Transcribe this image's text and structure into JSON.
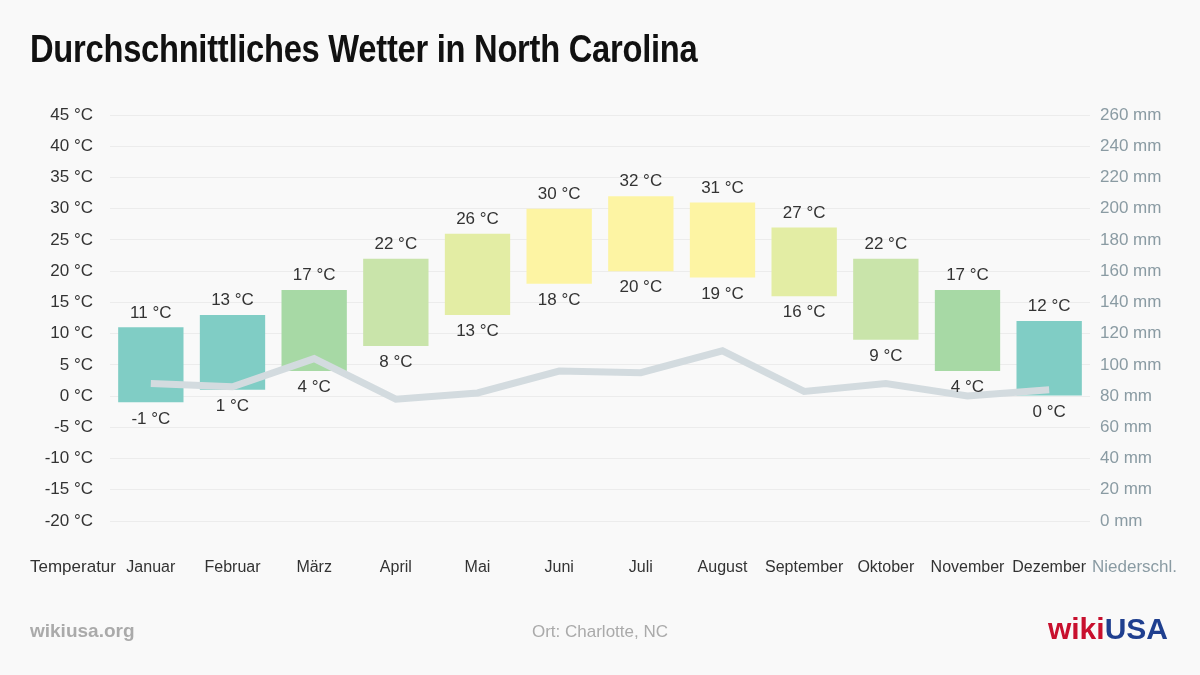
{
  "chart_data": {
    "type": "bar",
    "title": "Durchschnittliches Wetter in North Carolina",
    "categories": [
      "Januar",
      "Februar",
      "März",
      "April",
      "Mai",
      "Juni",
      "Juli",
      "August",
      "September",
      "Oktober",
      "November",
      "Dezember"
    ],
    "ylabel": "Temperatur",
    "y2label": "Niederschl.",
    "series": [
      {
        "type": "bar",
        "values": [
          [
            -1,
            11
          ],
          [
            1,
            13
          ],
          [
            4,
            17
          ],
          [
            8,
            22
          ],
          [
            13,
            26
          ],
          [
            18,
            30
          ],
          [
            20,
            32
          ],
          [
            19,
            31
          ],
          [
            16,
            27
          ],
          [
            9,
            22
          ],
          [
            4,
            17
          ],
          [
            0,
            12
          ]
        ],
        "value_labels": [
          [
            "-1 °C",
            "11 °C"
          ],
          [
            "1 °C",
            "13 °C"
          ],
          [
            "4 °C",
            "17 °C"
          ],
          [
            "8 °C",
            "22 °C"
          ],
          [
            "13 °C",
            "26 °C"
          ],
          [
            "18 °C",
            "30 °C"
          ],
          [
            "20 °C",
            "32 °C"
          ],
          [
            "19 °C",
            "31 °C"
          ],
          [
            "16 °C",
            "27 °C"
          ],
          [
            "9 °C",
            "22 °C"
          ],
          [
            "4 °C",
            "17 °C"
          ],
          [
            "0 °C",
            "12 °C"
          ]
        ],
        "colors": [
          "#80cdc5",
          "#80cdc5",
          "#a7d9a5",
          "#c9e4aa",
          "#e3eda4",
          "#fdf4a3",
          "#fdf4a3",
          "#fdf4a3",
          "#e3eda4",
          "#c9e4aa",
          "#a7d9a5",
          "#80cdc5"
        ]
      },
      {
        "type": "line",
        "axis": "y2",
        "color": "#d3dbdf",
        "values": [
          88,
          86,
          104,
          78,
          82,
          96,
          95,
          109,
          83,
          88,
          80,
          84
        ]
      }
    ],
    "ylim": [
      -20,
      45
    ],
    "yticks": [
      {
        "value": -20,
        "label": "-20 °C"
      },
      {
        "value": -15,
        "label": "-15 °C"
      },
      {
        "value": -10,
        "label": "-10 °C"
      },
      {
        "value": -5,
        "label": "-5 °C"
      },
      {
        "value": 0,
        "label": "0 °C"
      },
      {
        "value": 5,
        "label": "5 °C"
      },
      {
        "value": 10,
        "label": "10 °C"
      },
      {
        "value": 15,
        "label": "15 °C"
      },
      {
        "value": 20,
        "label": "20 °C"
      },
      {
        "value": 25,
        "label": "25 °C"
      },
      {
        "value": 30,
        "label": "30 °C"
      },
      {
        "value": 35,
        "label": "35 °C"
      },
      {
        "value": 40,
        "label": "40 °C"
      },
      {
        "value": 45,
        "label": "45 °C"
      }
    ],
    "y2lim": [
      0,
      260
    ],
    "y2ticks": [
      {
        "value": 0,
        "label": "0 mm"
      },
      {
        "value": 20,
        "label": "20 mm"
      },
      {
        "value": 40,
        "label": "40 mm"
      },
      {
        "value": 60,
        "label": "60 mm"
      },
      {
        "value": 80,
        "label": "80 mm"
      },
      {
        "value": 100,
        "label": "100 mm"
      },
      {
        "value": 120,
        "label": "120 mm"
      },
      {
        "value": 140,
        "label": "140 mm"
      },
      {
        "value": 160,
        "label": "160 mm"
      },
      {
        "value": 180,
        "label": "180 mm"
      },
      {
        "value": 200,
        "label": "200 mm"
      },
      {
        "value": 220,
        "label": "220 mm"
      },
      {
        "value": 240,
        "label": "240 mm"
      },
      {
        "value": 260,
        "label": "260 mm"
      }
    ],
    "grid": true,
    "data_labels": true,
    "annotations": [
      "wikiusa.org",
      "Ort: Charlotte, NC",
      "wikiUSA"
    ]
  }
}
